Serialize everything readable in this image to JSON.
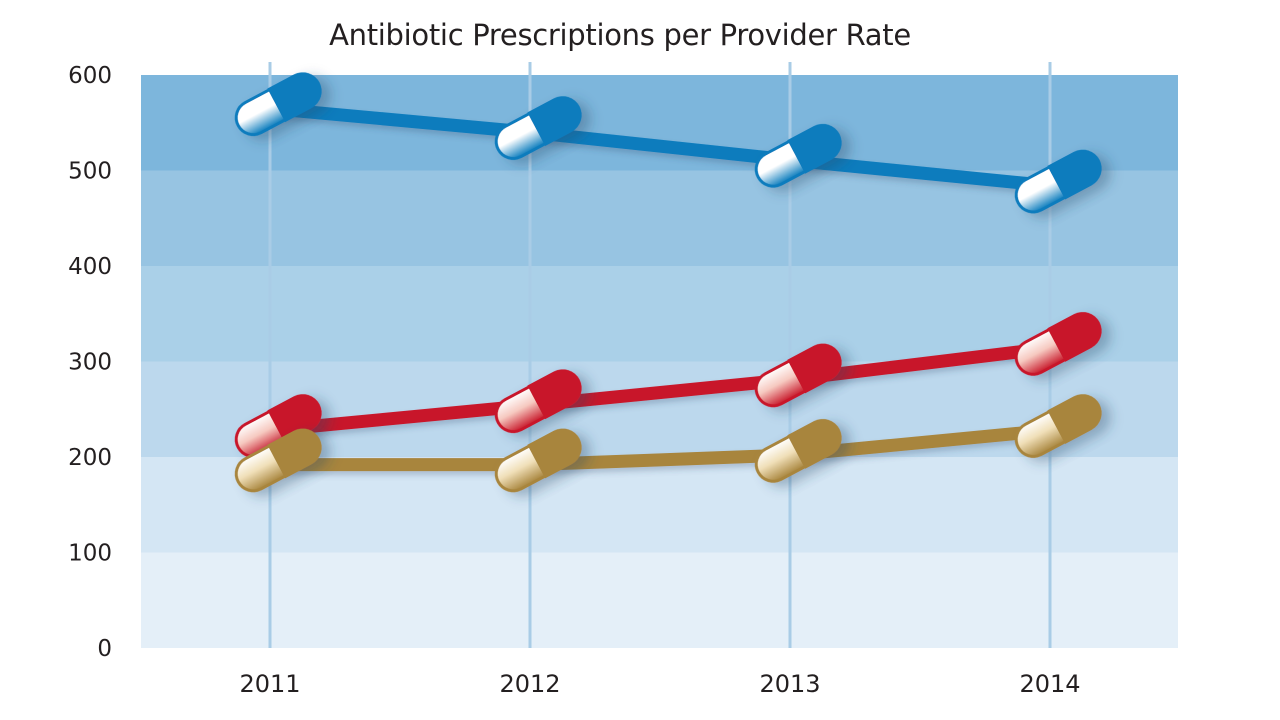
{
  "chart_data": {
    "type": "line",
    "title": "Antibiotic Prescriptions per Provider Rate",
    "xlabel": "",
    "ylabel": "",
    "categories": [
      "2011",
      "2012",
      "2013",
      "2014"
    ],
    "ylim": [
      0,
      600
    ],
    "yticks": [
      "0",
      "100",
      "200",
      "300",
      "400",
      "500",
      "600"
    ],
    "grid": true,
    "legend": "none",
    "marker_style": "capsule-pill",
    "band_colors": [
      "#e4eff8",
      "#d4e6f4",
      "#bcd8ed",
      "#aad0e8",
      "#97c4e2",
      "#7db6dc"
    ],
    "series": [
      {
        "name": "blue",
        "color": "#0a7cbd",
        "light": "#ffffff",
        "values": [
          565,
          540,
          511,
          484
        ]
      },
      {
        "name": "red",
        "color": "#c8192b",
        "light": "#f6c9c0",
        "values": [
          228,
          254,
          281,
          314
        ]
      },
      {
        "name": "gold",
        "color": "#a8853d",
        "light": "#f0dfb8",
        "values": [
          192,
          192,
          202,
          228
        ]
      }
    ]
  }
}
